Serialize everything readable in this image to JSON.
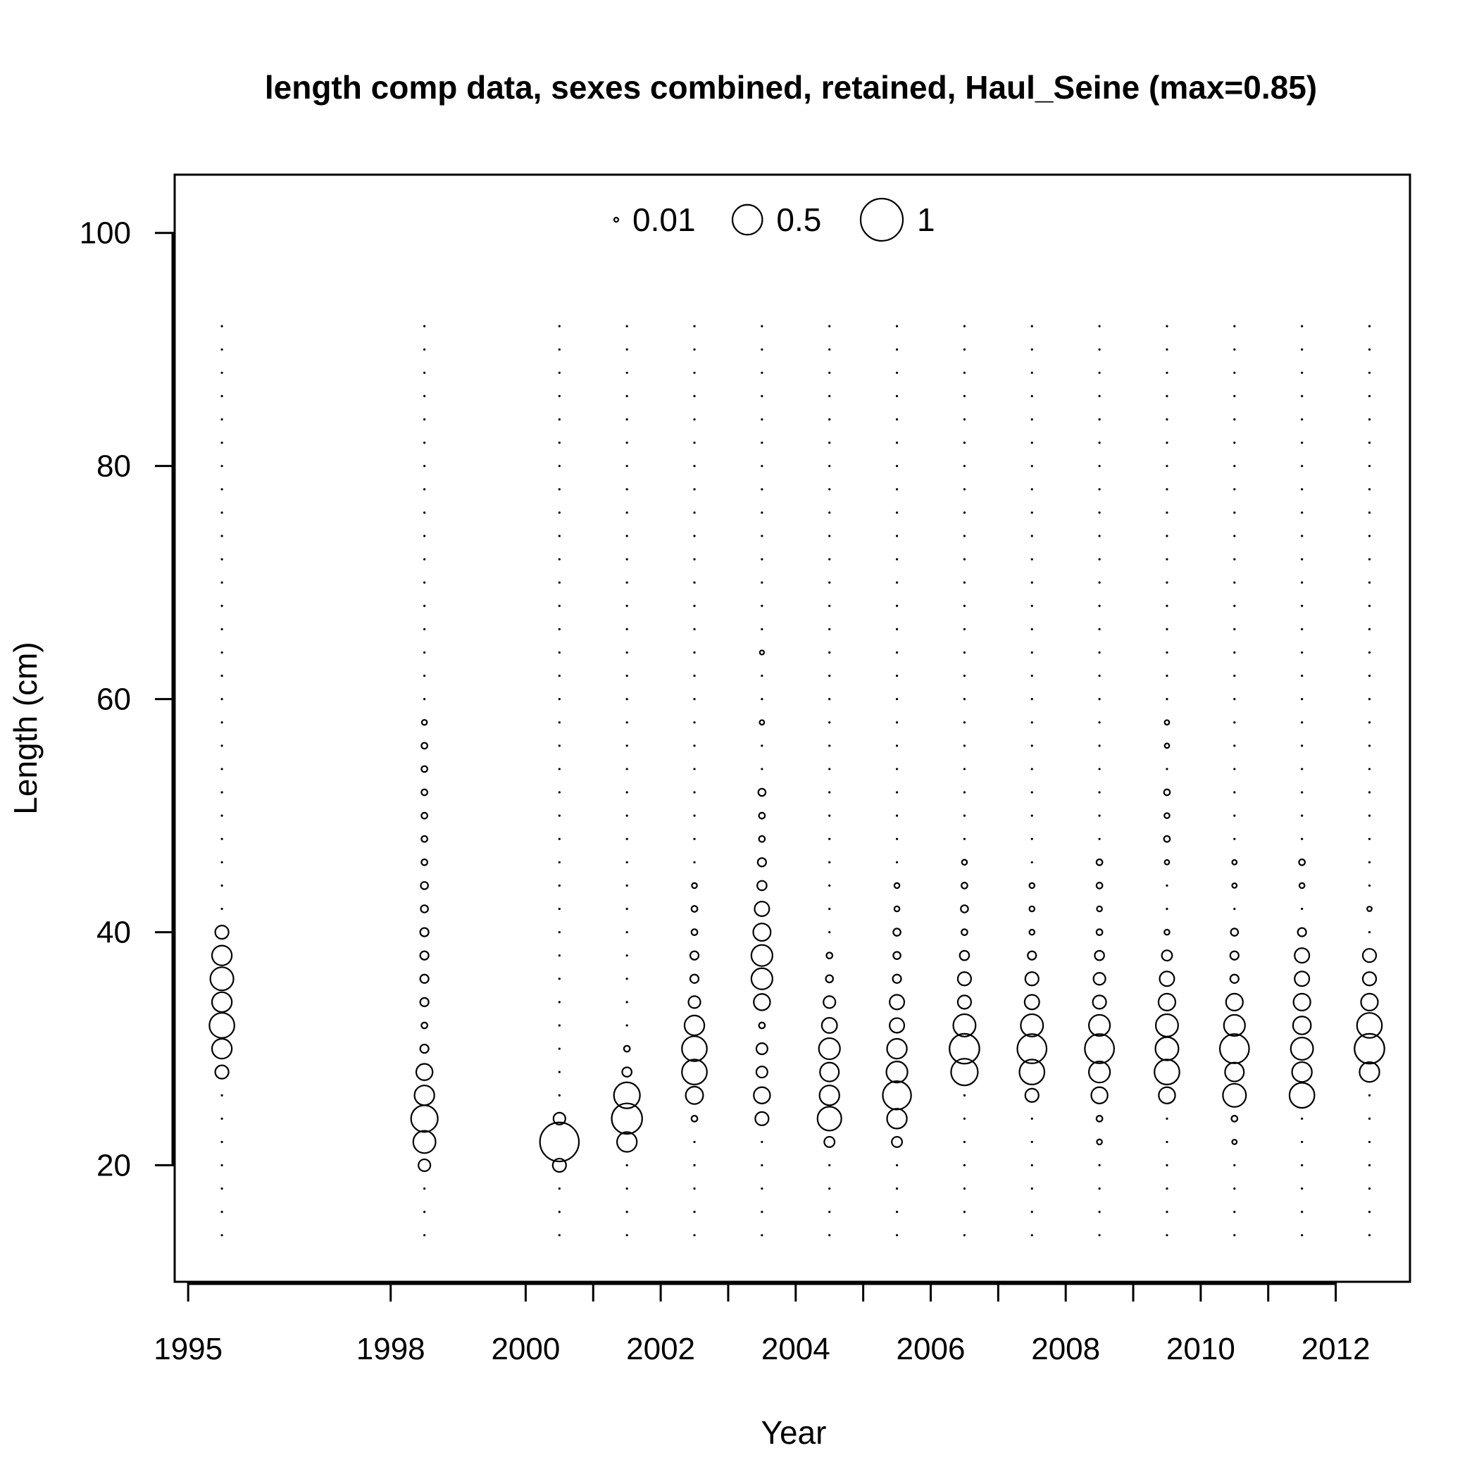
{
  "chart_data": {
    "type": "scatter",
    "subtype": "bubble",
    "title": "length comp data, sexes combined, retained, Haul_Seine (max=0.85)",
    "xlabel": "Year",
    "ylabel": "Length (cm)",
    "xlim": [
      1994.8,
      2013.1
    ],
    "ylim": [
      10,
      105
    ],
    "x_ticks": [
      1995,
      1998,
      2000,
      2001,
      2002,
      2003,
      2004,
      2005,
      2006,
      2007,
      2008,
      2009,
      2010,
      2011,
      2012
    ],
    "x_tick_labels": [
      "1995",
      "1998",
      "2000",
      "2002",
      "2004",
      "2006",
      "2008",
      "2010",
      "2012"
    ],
    "y_ticks": [
      20,
      40,
      60,
      80,
      100
    ],
    "legend": {
      "position": "top-center",
      "entries": [
        {
          "label": "0.01",
          "value": 0.01
        },
        {
          "label": "0.5",
          "value": 0.5
        },
        {
          "label": "1",
          "value": 1
        }
      ]
    },
    "grid": false,
    "length_bins": {
      "min": 14,
      "max": 92,
      "step": 2
    },
    "years": [
      1995.5,
      1998.5,
      2000.5,
      2001.5,
      2002.5,
      2003.5,
      2004.5,
      2005.5,
      2006.5,
      2007.5,
      2008.5,
      2009.5,
      2010.5,
      2011.5,
      2012.5
    ],
    "series": [
      {
        "year": 1995.5,
        "values": {
          "28": 0.1,
          "30": 0.22,
          "32": 0.35,
          "34": 0.22,
          "36": 0.3,
          "38": 0.22,
          "40": 0.1
        }
      },
      {
        "year": 1998.5,
        "values": {
          "20": 0.08,
          "22": 0.28,
          "24": 0.4,
          "26": 0.22,
          "28": 0.15,
          "30": 0.04,
          "32": 0.02,
          "34": 0.04,
          "36": 0.04,
          "38": 0.04,
          "40": 0.04,
          "42": 0.03,
          "44": 0.03,
          "46": 0.02,
          "48": 0.02,
          "50": 0.02,
          "52": 0.02,
          "54": 0.02,
          "56": 0.02,
          "58": 0.015
        }
      },
      {
        "year": 2000.5,
        "values": {
          "20": 0.1,
          "22": 0.85,
          "24": 0.08
        }
      },
      {
        "year": 2001.5,
        "values": {
          "22": 0.22,
          "24": 0.52,
          "26": 0.38,
          "28": 0.05,
          "30": 0.02
        }
      },
      {
        "year": 2002.5,
        "values": {
          "24": 0.02,
          "26": 0.17,
          "28": 0.35,
          "30": 0.35,
          "32": 0.22,
          "34": 0.08,
          "36": 0.04,
          "38": 0.04,
          "40": 0.02,
          "42": 0.02,
          "44": 0.015
        }
      },
      {
        "year": 2003.5,
        "values": {
          "24": 0.1,
          "26": 0.15,
          "28": 0.07,
          "30": 0.07,
          "32": 0.02,
          "34": 0.15,
          "36": 0.25,
          "38": 0.25,
          "40": 0.17,
          "42": 0.12,
          "44": 0.05,
          "46": 0.04,
          "48": 0.02,
          "50": 0.02,
          "52": 0.03,
          "58": 0.012,
          "64": 0.01
        }
      },
      {
        "year": 2004.5,
        "values": {
          "22": 0.06,
          "24": 0.32,
          "26": 0.22,
          "28": 0.2,
          "30": 0.25,
          "32": 0.13,
          "34": 0.08,
          "36": 0.03,
          "38": 0.02
        }
      },
      {
        "year": 2005.5,
        "values": {
          "22": 0.06,
          "24": 0.22,
          "26": 0.45,
          "28": 0.25,
          "30": 0.22,
          "32": 0.12,
          "34": 0.12,
          "36": 0.04,
          "38": 0.03,
          "40": 0.03,
          "42": 0.015,
          "44": 0.015
        }
      },
      {
        "year": 2006.5,
        "values": {
          "28": 0.4,
          "30": 0.5,
          "32": 0.28,
          "34": 0.1,
          "36": 0.1,
          "38": 0.05,
          "40": 0.02,
          "42": 0.03,
          "44": 0.02,
          "46": 0.015
        }
      },
      {
        "year": 2007.5,
        "values": {
          "26": 0.1,
          "28": 0.35,
          "30": 0.48,
          "32": 0.28,
          "34": 0.12,
          "36": 0.1,
          "38": 0.04,
          "40": 0.015,
          "42": 0.015,
          "44": 0.015
        }
      },
      {
        "year": 2008.5,
        "values": {
          "22": 0.015,
          "24": 0.02,
          "26": 0.15,
          "28": 0.25,
          "30": 0.48,
          "32": 0.25,
          "34": 0.1,
          "36": 0.08,
          "38": 0.05,
          "40": 0.02,
          "42": 0.015,
          "44": 0.02,
          "46": 0.02
        }
      },
      {
        "year": 2009.5,
        "values": {
          "26": 0.15,
          "28": 0.35,
          "30": 0.3,
          "32": 0.28,
          "34": 0.16,
          "36": 0.12,
          "38": 0.06,
          "40": 0.015,
          "46": 0.012,
          "48": 0.02,
          "50": 0.015,
          "52": 0.02,
          "56": 0.012,
          "58": 0.012
        }
      },
      {
        "year": 2010.5,
        "values": {
          "22": 0.012,
          "24": 0.02,
          "26": 0.3,
          "28": 0.2,
          "30": 0.48,
          "32": 0.25,
          "34": 0.16,
          "36": 0.04,
          "38": 0.04,
          "40": 0.03,
          "44": 0.012,
          "46": 0.012
        }
      },
      {
        "year": 2011.5,
        "values": {
          "26": 0.35,
          "28": 0.22,
          "30": 0.28,
          "32": 0.18,
          "34": 0.16,
          "36": 0.12,
          "38": 0.12,
          "40": 0.04,
          "44": 0.015,
          "46": 0.02
        }
      },
      {
        "year": 2012.5,
        "values": {
          "28": 0.22,
          "30": 0.5,
          "32": 0.35,
          "34": 0.16,
          "36": 0.1,
          "38": 0.1,
          "42": 0.012
        }
      }
    ]
  }
}
